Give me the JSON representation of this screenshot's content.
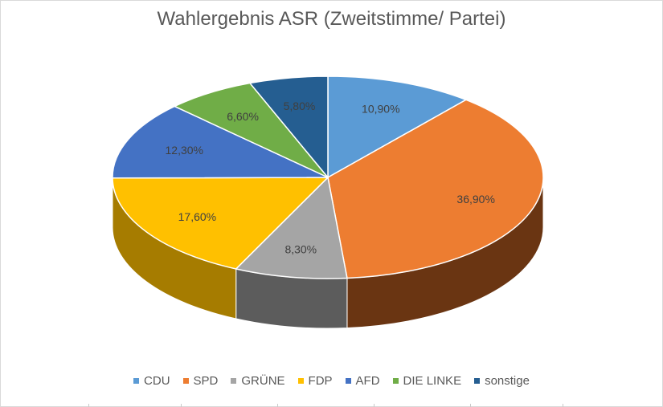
{
  "chart_data": {
    "type": "pie",
    "title": "Wahlergebnis ASR (Zweitstimme/ Partei)",
    "three_d": true,
    "categories": [
      "CDU",
      "SPD",
      "GRÜNE",
      "FDP",
      "AFD",
      "DIE LINKE",
      "sonstige"
    ],
    "values": [
      10.9,
      36.9,
      8.3,
      17.6,
      12.3,
      6.6,
      5.8
    ],
    "data_labels": [
      "10,90%",
      "36,90%",
      "8,30%",
      "17,60%",
      "12,30%",
      "6,60%",
      "5,80%"
    ],
    "colors": [
      "#5B9BD5",
      "#ED7D31",
      "#A5A5A5",
      "#FFC000",
      "#4472C4",
      "#70AD47",
      "#255E91"
    ],
    "side_colors": [
      "#3B6E9C",
      "#6A3512",
      "#5C5C5C",
      "#A67C00",
      "#2B4A85",
      "#47702D",
      "#173D5E"
    ],
    "legend_position": "bottom",
    "unit": "%"
  }
}
